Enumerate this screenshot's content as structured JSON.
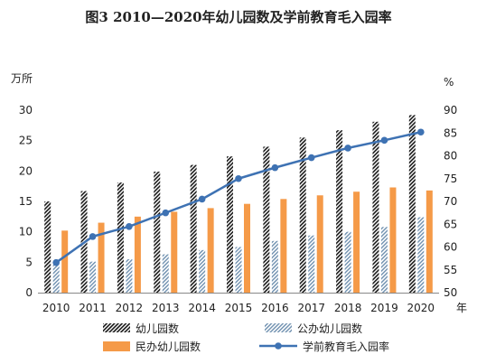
{
  "chart_data": {
    "type": "bar",
    "title": "图3    2010—2020年幼儿园数及学前教育毛入园率",
    "left_unit": "万所",
    "right_unit": "%",
    "x_unit": "年",
    "categories": [
      "2010",
      "2011",
      "2012",
      "2013",
      "2014",
      "2015",
      "2016",
      "2017",
      "2018",
      "2019",
      "2020"
    ],
    "y_left": {
      "min": 0,
      "max": 30,
      "ticks": [
        "0",
        "5",
        "10",
        "15",
        "20",
        "25",
        "30"
      ]
    },
    "y_right": {
      "min": 50,
      "max": 90,
      "ticks": [
        "50",
        "55",
        "60",
        "65",
        "70",
        "75",
        "80",
        "85",
        "90"
      ]
    },
    "grid": false,
    "legend_position": "bottom",
    "series": [
      {
        "name": "幼儿园数",
        "type": "bar",
        "axis": "left",
        "pattern": "dense-diagonal-black",
        "values": [
          15.0,
          16.7,
          18.1,
          19.9,
          21.0,
          22.4,
          24.0,
          25.5,
          26.7,
          28.1,
          29.2
        ]
      },
      {
        "name": "公办幼儿园数",
        "type": "bar",
        "axis": "left",
        "pattern": "diagonal-steelblue",
        "values": [
          4.8,
          5.1,
          5.5,
          6.3,
          7.0,
          7.5,
          8.5,
          9.4,
          10.0,
          10.8,
          12.4
        ]
      },
      {
        "name": "民办幼儿园数",
        "type": "bar",
        "axis": "left",
        "color": "#F59A48",
        "values": [
          10.2,
          11.5,
          12.5,
          13.3,
          13.9,
          14.6,
          15.4,
          16.0,
          16.6,
          17.3,
          16.8
        ]
      },
      {
        "name": "学前教育毛入园率",
        "type": "line",
        "axis": "right",
        "color": "#3E72B3",
        "values": [
          56.6,
          62.3,
          64.5,
          67.5,
          70.5,
          75.0,
          77.4,
          79.6,
          81.7,
          83.4,
          85.2
        ]
      }
    ]
  }
}
